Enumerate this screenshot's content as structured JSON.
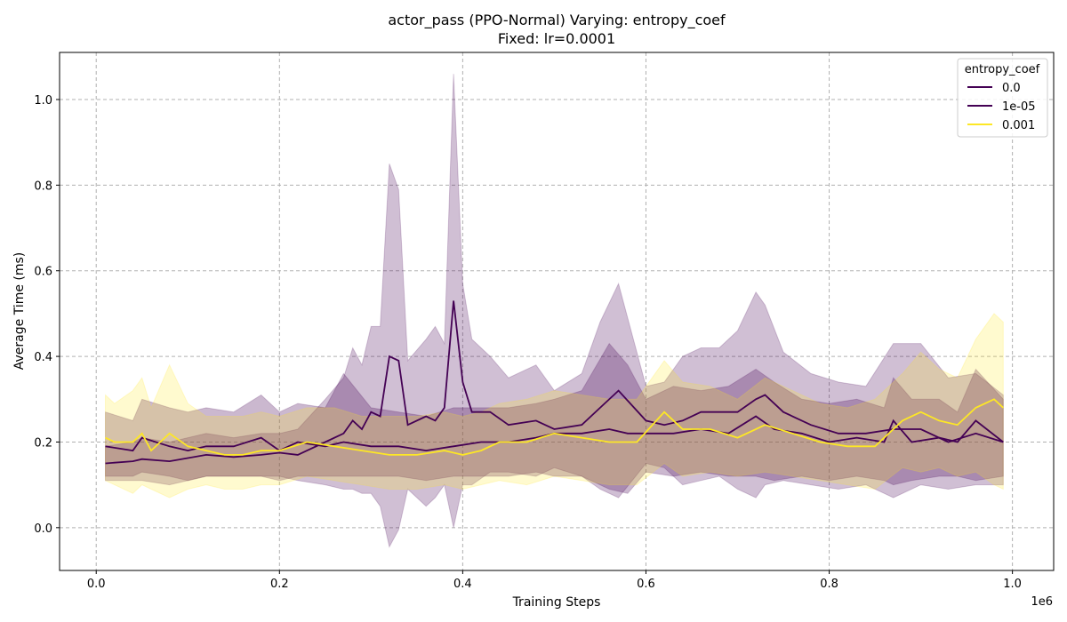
{
  "chart_data": {
    "type": "line",
    "title": "actor_pass (PPO-Normal) Varying: entropy_coef",
    "subtitle": "Fixed: lr=0.0001",
    "xlabel": "Training Steps",
    "ylabel": "Average Time (ms)",
    "x_offset_label": "1e6",
    "xlim": [
      -0.04,
      1.045
    ],
    "ylim": [
      -0.1,
      1.11
    ],
    "x_ticks": [
      0.0,
      0.2,
      0.4,
      0.6,
      0.8,
      1.0
    ],
    "x_tick_labels": [
      "0.0",
      "0.2",
      "0.4",
      "0.6",
      "0.8",
      "1.0"
    ],
    "y_ticks": [
      0.0,
      0.2,
      0.4,
      0.6,
      0.8,
      1.0
    ],
    "y_tick_labels": [
      "0.0",
      "0.2",
      "0.4",
      "0.6",
      "0.8",
      "1.0"
    ],
    "grid": true,
    "legend_title": "entropy_coef",
    "legend_position": "top-right",
    "series": [
      {
        "name": "0.0",
        "color": "#440154",
        "band_opacity": 0.25,
        "x": [
          0.01,
          0.04,
          0.05,
          0.08,
          0.12,
          0.15,
          0.18,
          0.2,
          0.22,
          0.25,
          0.27,
          0.28,
          0.29,
          0.3,
          0.31,
          0.32,
          0.33,
          0.34,
          0.36,
          0.37,
          0.38,
          0.39,
          0.4,
          0.41,
          0.43,
          0.45,
          0.48,
          0.5,
          0.53,
          0.55,
          0.57,
          0.6,
          0.62,
          0.64,
          0.66,
          0.68,
          0.7,
          0.72,
          0.73,
          0.75,
          0.78,
          0.81,
          0.84,
          0.87,
          0.9,
          0.93,
          0.96,
          0.99
        ],
        "mean": [
          0.15,
          0.155,
          0.16,
          0.155,
          0.17,
          0.165,
          0.17,
          0.175,
          0.17,
          0.2,
          0.22,
          0.25,
          0.23,
          0.27,
          0.26,
          0.4,
          0.39,
          0.24,
          0.26,
          0.25,
          0.28,
          0.53,
          0.34,
          0.27,
          0.27,
          0.24,
          0.25,
          0.23,
          0.24,
          0.28,
          0.32,
          0.25,
          0.24,
          0.25,
          0.27,
          0.27,
          0.27,
          0.3,
          0.31,
          0.27,
          0.24,
          0.22,
          0.22,
          0.23,
          0.23,
          0.2,
          0.22,
          0.2
        ],
        "upper": [
          0.19,
          0.2,
          0.21,
          0.2,
          0.22,
          0.21,
          0.22,
          0.22,
          0.23,
          0.3,
          0.35,
          0.42,
          0.38,
          0.47,
          0.47,
          0.85,
          0.79,
          0.39,
          0.44,
          0.47,
          0.43,
          1.06,
          0.57,
          0.44,
          0.4,
          0.35,
          0.38,
          0.32,
          0.36,
          0.48,
          0.57,
          0.33,
          0.34,
          0.4,
          0.42,
          0.42,
          0.46,
          0.55,
          0.52,
          0.41,
          0.36,
          0.34,
          0.33,
          0.43,
          0.43,
          0.35,
          0.36,
          0.31
        ],
        "lower": [
          0.11,
          0.11,
          0.11,
          0.1,
          0.12,
          0.12,
          0.12,
          0.12,
          0.11,
          0.1,
          0.09,
          0.09,
          0.08,
          0.08,
          0.05,
          -0.045,
          -0.005,
          0.09,
          0.05,
          0.07,
          0.1,
          0.0,
          0.1,
          0.1,
          0.13,
          0.13,
          0.12,
          0.14,
          0.12,
          0.09,
          0.07,
          0.15,
          0.14,
          0.1,
          0.11,
          0.12,
          0.09,
          0.07,
          0.1,
          0.11,
          0.1,
          0.09,
          0.1,
          0.07,
          0.1,
          0.09,
          0.1,
          0.1
        ]
      },
      {
        "name": "1e-05",
        "color": "#440154",
        "band_opacity": 0.28,
        "x": [
          0.01,
          0.04,
          0.05,
          0.08,
          0.1,
          0.12,
          0.15,
          0.18,
          0.2,
          0.22,
          0.25,
          0.27,
          0.3,
          0.33,
          0.36,
          0.39,
          0.42,
          0.45,
          0.48,
          0.5,
          0.53,
          0.56,
          0.58,
          0.6,
          0.63,
          0.66,
          0.69,
          0.72,
          0.74,
          0.77,
          0.8,
          0.83,
          0.86,
          0.87,
          0.89,
          0.92,
          0.94,
          0.96,
          0.99
        ],
        "mean": [
          0.19,
          0.18,
          0.21,
          0.19,
          0.18,
          0.19,
          0.19,
          0.21,
          0.18,
          0.2,
          0.19,
          0.2,
          0.19,
          0.19,
          0.18,
          0.19,
          0.2,
          0.2,
          0.21,
          0.22,
          0.22,
          0.23,
          0.22,
          0.22,
          0.22,
          0.23,
          0.22,
          0.26,
          0.23,
          0.22,
          0.2,
          0.21,
          0.2,
          0.25,
          0.2,
          0.21,
          0.2,
          0.25,
          0.2
        ],
        "upper": [
          0.27,
          0.25,
          0.3,
          0.28,
          0.27,
          0.28,
          0.27,
          0.31,
          0.27,
          0.29,
          0.28,
          0.36,
          0.28,
          0.27,
          0.26,
          0.28,
          0.28,
          0.28,
          0.29,
          0.3,
          0.32,
          0.43,
          0.38,
          0.3,
          0.33,
          0.32,
          0.33,
          0.37,
          0.34,
          0.3,
          0.29,
          0.3,
          0.28,
          0.35,
          0.3,
          0.3,
          0.27,
          0.37,
          0.3
        ],
        "lower": [
          0.12,
          0.12,
          0.13,
          0.12,
          0.11,
          0.12,
          0.12,
          0.12,
          0.11,
          0.12,
          0.12,
          0.12,
          0.12,
          0.12,
          0.11,
          0.12,
          0.12,
          0.12,
          0.13,
          0.12,
          0.12,
          0.09,
          0.08,
          0.13,
          0.12,
          0.13,
          0.12,
          0.12,
          0.11,
          0.12,
          0.11,
          0.12,
          0.11,
          0.1,
          0.11,
          0.12,
          0.12,
          0.11,
          0.12
        ]
      },
      {
        "name": "0.001",
        "color": "#fde725",
        "band_opacity": 0.22,
        "x": [
          0.01,
          0.02,
          0.04,
          0.05,
          0.06,
          0.08,
          0.1,
          0.12,
          0.14,
          0.16,
          0.18,
          0.2,
          0.23,
          0.26,
          0.29,
          0.32,
          0.35,
          0.38,
          0.4,
          0.42,
          0.44,
          0.47,
          0.5,
          0.53,
          0.56,
          0.59,
          0.62,
          0.64,
          0.67,
          0.7,
          0.73,
          0.76,
          0.79,
          0.82,
          0.85,
          0.88,
          0.9,
          0.92,
          0.94,
          0.96,
          0.98,
          0.99
        ],
        "mean": [
          0.21,
          0.2,
          0.2,
          0.22,
          0.18,
          0.22,
          0.19,
          0.18,
          0.17,
          0.17,
          0.18,
          0.18,
          0.2,
          0.19,
          0.18,
          0.17,
          0.17,
          0.18,
          0.17,
          0.18,
          0.2,
          0.2,
          0.22,
          0.21,
          0.2,
          0.2,
          0.27,
          0.23,
          0.23,
          0.21,
          0.24,
          0.22,
          0.2,
          0.19,
          0.19,
          0.25,
          0.27,
          0.25,
          0.24,
          0.28,
          0.3,
          0.28
        ],
        "upper": [
          0.31,
          0.29,
          0.32,
          0.35,
          0.28,
          0.38,
          0.29,
          0.26,
          0.26,
          0.26,
          0.27,
          0.26,
          0.28,
          0.28,
          0.26,
          0.26,
          0.26,
          0.27,
          0.26,
          0.27,
          0.29,
          0.3,
          0.32,
          0.31,
          0.3,
          0.3,
          0.39,
          0.34,
          0.33,
          0.3,
          0.35,
          0.32,
          0.29,
          0.28,
          0.3,
          0.36,
          0.41,
          0.37,
          0.35,
          0.44,
          0.5,
          0.48
        ],
        "lower": [
          0.11,
          0.1,
          0.08,
          0.1,
          0.09,
          0.07,
          0.09,
          0.1,
          0.09,
          0.09,
          0.1,
          0.1,
          0.12,
          0.11,
          0.1,
          0.09,
          0.09,
          0.1,
          0.09,
          0.1,
          0.11,
          0.1,
          0.12,
          0.11,
          0.1,
          0.1,
          0.15,
          0.12,
          0.13,
          0.12,
          0.13,
          0.12,
          0.11,
          0.1,
          0.09,
          0.14,
          0.13,
          0.14,
          0.12,
          0.13,
          0.1,
          0.09
        ]
      }
    ]
  }
}
